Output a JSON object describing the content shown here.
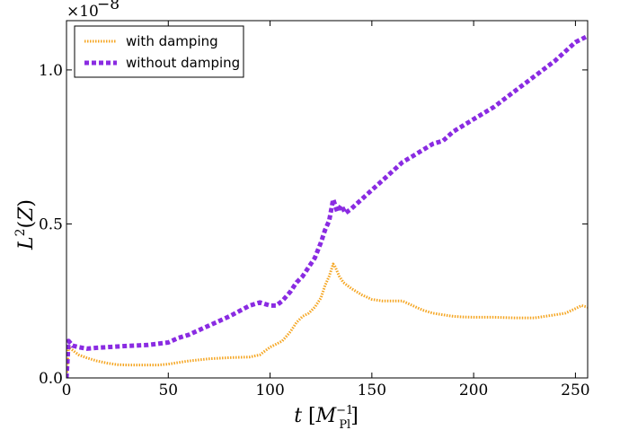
{
  "chart_data": {
    "type": "line",
    "xlabel": "t [M_Pl^-1]",
    "ylabel": "L^2(Z)",
    "scale_label": "×10^-8",
    "xlim": [
      0,
      256
    ],
    "ylim": [
      0.0,
      1.16
    ],
    "xticks": [
      0,
      50,
      100,
      150,
      200,
      250
    ],
    "yticks": [
      0.0,
      0.5,
      1.0
    ],
    "ytick_labels": [
      "0.0",
      "0.5",
      "1.0"
    ],
    "grid": false,
    "legend_position": "top-left",
    "series": [
      {
        "name": "with damping",
        "color": "#F5A623",
        "style": "dotted",
        "x": [
          0,
          1,
          3,
          6,
          10,
          15,
          20,
          25,
          30,
          35,
          40,
          45,
          50,
          55,
          60,
          70,
          80,
          90,
          95,
          98,
          100,
          103,
          106,
          110,
          113,
          116,
          119,
          122,
          125,
          127,
          129,
          131,
          132,
          134,
          136,
          138,
          140,
          145,
          150,
          155,
          160,
          165,
          170,
          175,
          180,
          185,
          190,
          195,
          200,
          210,
          220,
          230,
          235,
          240,
          245,
          250,
          253,
          256
        ],
        "y": [
          0.0,
          0.1,
          0.09,
          0.075,
          0.065,
          0.055,
          0.048,
          0.043,
          0.042,
          0.042,
          0.042,
          0.042,
          0.045,
          0.05,
          0.055,
          0.062,
          0.066,
          0.068,
          0.075,
          0.09,
          0.1,
          0.11,
          0.12,
          0.15,
          0.18,
          0.2,
          0.21,
          0.23,
          0.26,
          0.3,
          0.33,
          0.37,
          0.36,
          0.33,
          0.31,
          0.3,
          0.29,
          0.27,
          0.255,
          0.25,
          0.25,
          0.25,
          0.235,
          0.22,
          0.21,
          0.205,
          0.2,
          0.198,
          0.197,
          0.197,
          0.195,
          0.195,
          0.2,
          0.205,
          0.21,
          0.225,
          0.235,
          0.23
        ]
      },
      {
        "name": "without damping",
        "color": "#8A2BE2",
        "style": "dashed",
        "x": [
          0,
          1,
          3,
          6,
          10,
          15,
          20,
          30,
          40,
          50,
          55,
          60,
          70,
          80,
          90,
          95,
          100,
          103,
          106,
          110,
          113,
          116,
          119,
          122,
          125,
          127,
          129,
          131,
          133,
          135,
          137,
          140,
          145,
          150,
          155,
          160,
          165,
          170,
          175,
          180,
          185,
          190,
          195,
          200,
          210,
          220,
          230,
          240,
          250,
          256
        ],
        "y": [
          0.0,
          0.12,
          0.105,
          0.1,
          0.095,
          0.098,
          0.1,
          0.104,
          0.107,
          0.115,
          0.13,
          0.14,
          0.17,
          0.2,
          0.235,
          0.245,
          0.235,
          0.235,
          0.25,
          0.28,
          0.31,
          0.33,
          0.36,
          0.39,
          0.44,
          0.48,
          0.51,
          0.58,
          0.54,
          0.56,
          0.535,
          0.55,
          0.58,
          0.61,
          0.64,
          0.67,
          0.7,
          0.72,
          0.74,
          0.76,
          0.77,
          0.8,
          0.82,
          0.84,
          0.88,
          0.93,
          0.98,
          1.03,
          1.09,
          1.11
        ]
      }
    ]
  }
}
